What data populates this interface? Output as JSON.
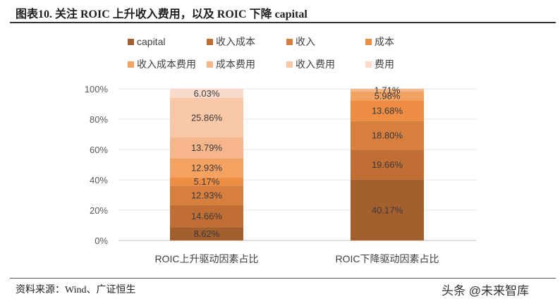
{
  "figure_title": "图表10.  关注 ROIC 上升收入费用，以及 ROIC 下降 capital",
  "source": "资料来源：Wind、广证恒生",
  "watermark": "头条 @未来智库",
  "chart_data": {
    "type": "bar",
    "stacked": true,
    "percent": true,
    "title": "",
    "xlabel": "",
    "ylabel": "",
    "ylim": [
      0,
      100
    ],
    "yticks": [
      0,
      20,
      40,
      60,
      80,
      100
    ],
    "ytick_labels": [
      "0%",
      "20%",
      "40%",
      "60%",
      "80%",
      "100%"
    ],
    "categories": [
      "ROIC上升驱动因素占比",
      "ROIC下降驱动因素占比"
    ],
    "legend_position": "top",
    "series": [
      {
        "name": "capital",
        "color": "#A45F2E",
        "values": [
          8.62,
          40.17
        ],
        "labels": [
          "8.62%",
          "40.17%"
        ]
      },
      {
        "name": "收入成本",
        "color": "#C06E34",
        "values": [
          14.66,
          19.66
        ],
        "labels": [
          "14.66%",
          "19.66%"
        ]
      },
      {
        "name": "收入",
        "color": "#D77F3F",
        "values": [
          12.93,
          18.8
        ],
        "labels": [
          "12.93%",
          "18.80%"
        ]
      },
      {
        "name": "成本",
        "color": "#EE8E45",
        "values": [
          5.17,
          13.68
        ],
        "labels": [
          "5.17%",
          "13.68%"
        ]
      },
      {
        "name": "收入成本费用",
        "color": "#F4A262",
        "values": [
          12.93,
          5.98
        ],
        "labels": [
          "12.93%",
          "5.98%"
        ]
      },
      {
        "name": "成本费用",
        "color": "#F6B58A",
        "values": [
          13.79,
          1.71
        ],
        "labels": [
          "13.79%",
          "1.71%"
        ]
      },
      {
        "name": "收入费用",
        "color": "#F8C8A8",
        "values": [
          25.86,
          0
        ],
        "labels": [
          "25.86%",
          ""
        ]
      },
      {
        "name": "费用",
        "color": "#FADACB",
        "values": [
          6.03,
          0
        ],
        "labels": [
          "6.03%",
          ""
        ]
      }
    ]
  }
}
